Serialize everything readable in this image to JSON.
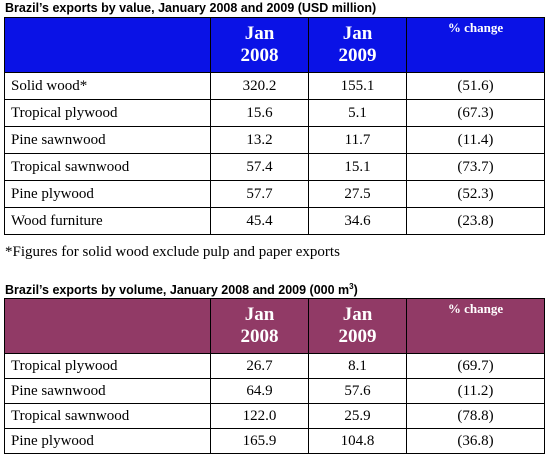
{
  "value_table": {
    "title": "Brazil’s exports by value, January 2008 and 2009 (USD million)",
    "col_2008_line1": "Jan",
    "col_2008_line2": "2008",
    "col_2009_line1": "Jan",
    "col_2009_line2": "2009",
    "col_change": "% change",
    "rows": [
      {
        "label": "Solid wood*",
        "jan2008": "320.2",
        "jan2009": "155.1",
        "change": "(51.6)"
      },
      {
        "label": "Tropical plywood",
        "jan2008": "15.6",
        "jan2009": "5.1",
        "change": "(67.3)"
      },
      {
        "label": "Pine sawnwood",
        "jan2008": "13.2",
        "jan2009": "11.7",
        "change": "(11.4)"
      },
      {
        "label": "Tropical sawnwood",
        "jan2008": "57.4",
        "jan2009": "15.1",
        "change": "(73.7)"
      },
      {
        "label": "Pine plywood",
        "jan2008": "57.7",
        "jan2009": "27.5",
        "change": "(52.3)"
      },
      {
        "label": "Wood furniture",
        "jan2008": "45.4",
        "jan2009": "34.6",
        "change": "(23.8)"
      }
    ],
    "footnote": "*Figures for solid wood exclude pulp and paper exports",
    "header_color": "#0a12e6"
  },
  "volume_table": {
    "title_main": "Brazil’s exports by volume, January 2008 and 2009 (000 m",
    "title_sup": "3",
    "title_end": ")",
    "col_2008_line1": "Jan",
    "col_2008_line2": "2008",
    "col_2009_line1": "Jan",
    "col_2009_line2": "2009",
    "col_change": "% change",
    "rows": [
      {
        "label": "Tropical plywood",
        "jan2008": "26.7",
        "jan2009": "8.1",
        "change": "(69.7)"
      },
      {
        "label": "Pine sawnwood",
        "jan2008": "64.9",
        "jan2009": "57.6",
        "change": "(11.2)"
      },
      {
        "label": "Tropical sawnwood",
        "jan2008": "122.0",
        "jan2009": "25.9",
        "change": "(78.8)"
      },
      {
        "label": "Pine plywood",
        "jan2008": "165.9",
        "jan2009": "104.8",
        "change": "(36.8)"
      }
    ],
    "header_color": "#913a66"
  }
}
